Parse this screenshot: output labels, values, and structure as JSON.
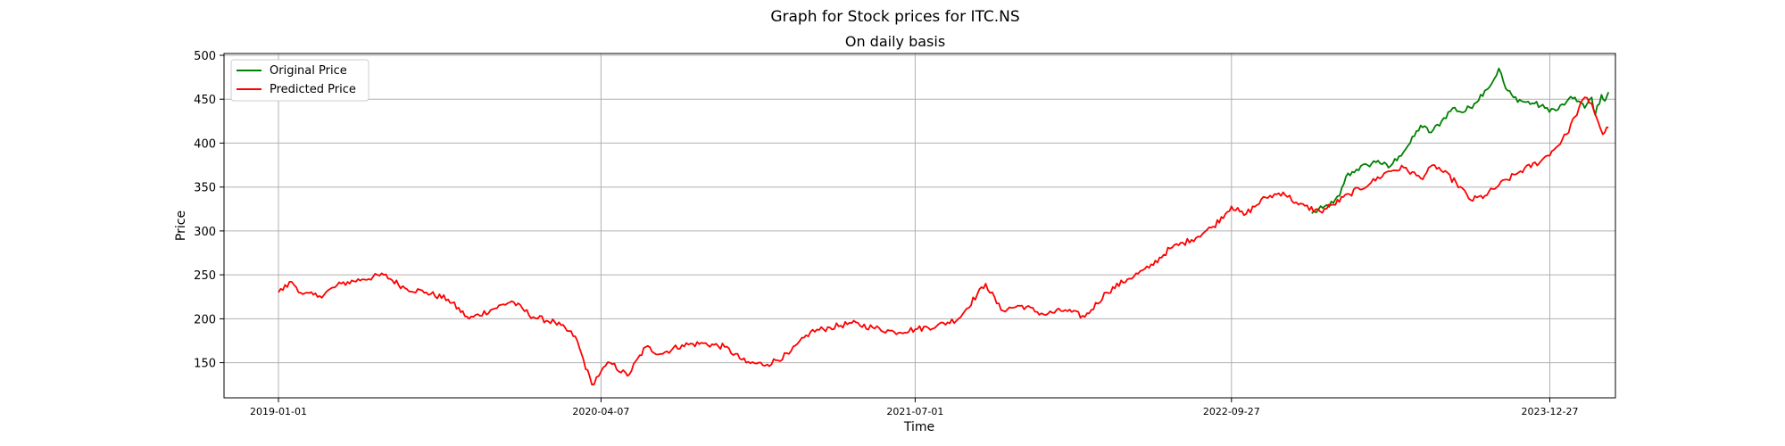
{
  "chart_data": {
    "type": "line",
    "suptitle": "Graph for Stock prices for ITC.NS",
    "title": "On daily basis",
    "xlabel": "Time",
    "ylabel": "Price",
    "x_tick_labels": [
      "2019-01-01",
      "2020-04-07",
      "2021-07-01",
      "2022-09-27",
      "2023-12-27"
    ],
    "xlim": [
      "2018-10-15",
      "2024-03-30"
    ],
    "ylim": [
      110,
      502
    ],
    "y_ticks": [
      150,
      200,
      250,
      300,
      350,
      400,
      450,
      500
    ],
    "grid": true,
    "legend_position": "top-left",
    "series": [
      {
        "name": "Original Price",
        "color": "#008000",
        "points": [
          [
            "2023-01-20",
            320
          ],
          [
            "2023-02-05",
            326
          ],
          [
            "2023-02-20",
            332
          ],
          [
            "2023-03-01",
            340
          ],
          [
            "2023-03-10",
            362
          ],
          [
            "2023-03-25",
            370
          ],
          [
            "2023-04-10",
            375
          ],
          [
            "2023-04-25",
            380
          ],
          [
            "2023-05-10",
            372
          ],
          [
            "2023-05-25",
            385
          ],
          [
            "2023-06-10",
            400
          ],
          [
            "2023-06-25",
            420
          ],
          [
            "2023-07-10",
            412
          ],
          [
            "2023-07-25",
            425
          ],
          [
            "2023-08-10",
            440
          ],
          [
            "2023-08-25",
            435
          ],
          [
            "2023-09-10",
            445
          ],
          [
            "2023-09-25",
            460
          ],
          [
            "2023-10-05",
            468
          ],
          [
            "2023-10-15",
            485
          ],
          [
            "2023-10-25",
            462
          ],
          [
            "2023-11-05",
            452
          ],
          [
            "2023-11-20",
            447
          ],
          [
            "2023-12-05",
            445
          ],
          [
            "2023-12-20",
            440
          ],
          [
            "2024-01-05",
            437
          ],
          [
            "2024-01-20",
            447
          ],
          [
            "2024-02-01",
            452
          ],
          [
            "2024-02-15",
            440
          ],
          [
            "2024-02-25",
            452
          ],
          [
            "2024-03-01",
            432
          ],
          [
            "2024-03-10",
            455
          ],
          [
            "2024-03-15",
            448
          ],
          [
            "2024-03-20",
            458
          ]
        ]
      },
      {
        "name": "Predicted Price",
        "color": "#ff0000",
        "points": [
          [
            "2019-01-01",
            230
          ],
          [
            "2019-01-20",
            242
          ],
          [
            "2019-02-05",
            228
          ],
          [
            "2019-03-01",
            226
          ],
          [
            "2019-04-01",
            240
          ],
          [
            "2019-05-01",
            245
          ],
          [
            "2019-06-01",
            250
          ],
          [
            "2019-07-01",
            235
          ],
          [
            "2019-08-01",
            230
          ],
          [
            "2019-09-01",
            222
          ],
          [
            "2019-10-01",
            200
          ],
          [
            "2019-11-01",
            210
          ],
          [
            "2019-12-01",
            220
          ],
          [
            "2020-01-01",
            202
          ],
          [
            "2020-02-01",
            196
          ],
          [
            "2020-03-01",
            180
          ],
          [
            "2020-03-25",
            125
          ],
          [
            "2020-04-07",
            140
          ],
          [
            "2020-04-20",
            150
          ],
          [
            "2020-05-15",
            135
          ],
          [
            "2020-06-10",
            168
          ],
          [
            "2020-07-01",
            160
          ],
          [
            "2020-08-01",
            170
          ],
          [
            "2020-09-01",
            172
          ],
          [
            "2020-10-01",
            168
          ],
          [
            "2020-11-01",
            150
          ],
          [
            "2020-12-01",
            148
          ],
          [
            "2021-01-01",
            160
          ],
          [
            "2021-02-01",
            185
          ],
          [
            "2021-03-01",
            190
          ],
          [
            "2021-04-01",
            195
          ],
          [
            "2021-05-01",
            190
          ],
          [
            "2021-06-01",
            185
          ],
          [
            "2021-07-01",
            188
          ],
          [
            "2021-08-01",
            192
          ],
          [
            "2021-09-01",
            200
          ],
          [
            "2021-10-10",
            240
          ],
          [
            "2021-11-01",
            210
          ],
          [
            "2021-12-01",
            215
          ],
          [
            "2022-01-01",
            205
          ],
          [
            "2022-02-01",
            210
          ],
          [
            "2022-03-01",
            202
          ],
          [
            "2022-04-01",
            230
          ],
          [
            "2022-05-01",
            245
          ],
          [
            "2022-06-01",
            258
          ],
          [
            "2022-07-01",
            280
          ],
          [
            "2022-08-01",
            290
          ],
          [
            "2022-09-01",
            305
          ],
          [
            "2022-09-27",
            328
          ],
          [
            "2022-10-15",
            318
          ],
          [
            "2022-11-15",
            338
          ],
          [
            "2022-12-10",
            344
          ],
          [
            "2023-01-01",
            330
          ],
          [
            "2023-02-01",
            322
          ],
          [
            "2023-02-20",
            330
          ],
          [
            "2023-03-15",
            342
          ],
          [
            "2023-04-15",
            355
          ],
          [
            "2023-05-10",
            368
          ],
          [
            "2023-06-01",
            372
          ],
          [
            "2023-06-25",
            360
          ],
          [
            "2023-07-15",
            375
          ],
          [
            "2023-08-15",
            355
          ],
          [
            "2023-09-05",
            335
          ],
          [
            "2023-09-25",
            340
          ],
          [
            "2023-10-15",
            352
          ],
          [
            "2023-11-15",
            368
          ],
          [
            "2023-12-15",
            380
          ],
          [
            "2024-01-05",
            395
          ],
          [
            "2024-01-20",
            410
          ],
          [
            "2024-02-01",
            430
          ],
          [
            "2024-02-15",
            452
          ],
          [
            "2024-02-25",
            445
          ],
          [
            "2024-03-05",
            425
          ],
          [
            "2024-03-12",
            410
          ],
          [
            "2024-03-20",
            418
          ]
        ]
      }
    ]
  }
}
